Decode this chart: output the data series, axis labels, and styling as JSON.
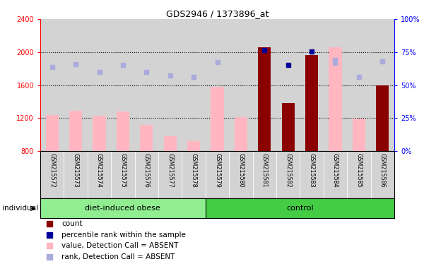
{
  "title": "GDS2946 / 1373896_at",
  "samples": [
    "GSM215572",
    "GSM215573",
    "GSM215574",
    "GSM215575",
    "GSM215576",
    "GSM215577",
    "GSM215578",
    "GSM215579",
    "GSM215580",
    "GSM215581",
    "GSM215582",
    "GSM215583",
    "GSM215584",
    "GSM215585",
    "GSM215586"
  ],
  "count_values": [
    null,
    null,
    null,
    null,
    null,
    null,
    null,
    null,
    null,
    2060,
    1380,
    1960,
    null,
    null,
    1600
  ],
  "count_is_dark": [
    false,
    false,
    false,
    false,
    false,
    false,
    false,
    false,
    false,
    true,
    true,
    true,
    false,
    false,
    true
  ],
  "absent_value": [
    1240,
    1290,
    1225,
    1280,
    1120,
    980,
    920,
    1580,
    1210,
    null,
    null,
    null,
    2060,
    1195,
    null
  ],
  "rank_absent": [
    1820,
    1850,
    1760,
    1840,
    1760,
    1720,
    1700,
    1880,
    null,
    null,
    null,
    null,
    1900,
    1700,
    null
  ],
  "percentile_present": [
    null,
    null,
    null,
    null,
    null,
    null,
    null,
    null,
    null,
    2020,
    1840,
    2010,
    1870,
    null,
    1890
  ],
  "percentile_is_dark": [
    false,
    false,
    false,
    false,
    false,
    false,
    false,
    false,
    false,
    true,
    true,
    true,
    false,
    false,
    false
  ],
  "group_boundary": 7,
  "group_label_0": "diet-induced obese",
  "group_label_1": "control",
  "group_color_0": "#90EE90",
  "group_color_1": "#44CC44",
  "ylim_left": [
    800,
    2400
  ],
  "ylim_right": [
    0,
    100
  ],
  "yticks_left": [
    800,
    1200,
    1600,
    2000,
    2400
  ],
  "yticks_right": [
    0,
    25,
    50,
    75,
    100
  ],
  "grid_lines": [
    1200,
    1600,
    2000
  ],
  "bar_color_dark": "#8B0000",
  "bar_color_light": "#FFB6C1",
  "dot_color_dark": "#000099",
  "dot_color_light": "#AAAADD",
  "col_bg_color": "#D3D3D3",
  "plot_bg_color": "#FFFFFF",
  "bar_width": 0.55,
  "dot_size": 5,
  "legend_items": [
    {
      "color": "#8B0000",
      "marker": "s",
      "label": "count"
    },
    {
      "color": "#000099",
      "marker": "s",
      "label": "percentile rank within the sample"
    },
    {
      "color": "#FFB6C1",
      "marker": "s",
      "label": "value, Detection Call = ABSENT"
    },
    {
      "color": "#AAAADD",
      "marker": "s",
      "label": "rank, Detection Call = ABSENT"
    }
  ]
}
